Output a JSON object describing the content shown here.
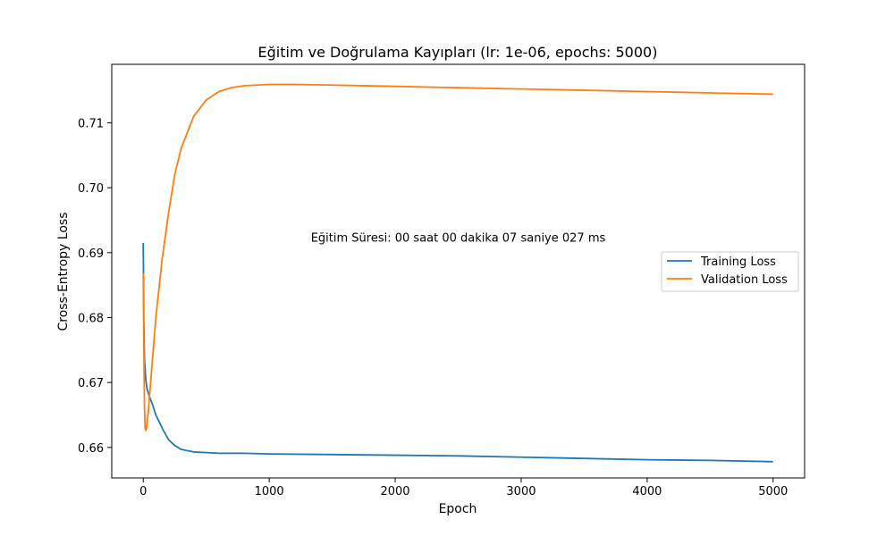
{
  "chart_data": {
    "type": "line",
    "title": "Eğitim ve Doğrulama Kayıpları (lr: 1e-06, epochs: 5000)",
    "xlabel": "Epoch",
    "ylabel": "Cross-Entropy Loss",
    "xlim": [
      -250,
      5250
    ],
    "ylim": [
      0.6553,
      0.719
    ],
    "xticks": [
      0,
      1000,
      2000,
      3000,
      4000,
      5000
    ],
    "yticks": [
      0.66,
      0.67,
      0.68,
      0.69,
      0.7,
      0.71
    ],
    "ytick_labels": [
      "0.66",
      "0.67",
      "0.68",
      "0.69",
      "0.70",
      "0.71"
    ],
    "grid": false,
    "legend_position": "center-right",
    "annotation": {
      "text": "Eğitim Süresi: 00 saat 00 dakika 07 saniye 027 ms",
      "x": 2500,
      "y": 0.6917
    },
    "series": [
      {
        "name": "Training Loss",
        "color": "#1f77b4",
        "x": [
          0,
          5,
          10,
          20,
          30,
          50,
          75,
          100,
          150,
          200,
          250,
          300,
          400,
          500,
          600,
          800,
          1000,
          1500,
          2000,
          2500,
          3000,
          3500,
          4000,
          4500,
          5000
        ],
        "y": [
          0.6915,
          0.679,
          0.6735,
          0.6705,
          0.669,
          0.6678,
          0.6665,
          0.665,
          0.663,
          0.6612,
          0.6603,
          0.6597,
          0.6593,
          0.6592,
          0.6591,
          0.6591,
          0.659,
          0.6589,
          0.6588,
          0.6587,
          0.6585,
          0.6583,
          0.6581,
          0.658,
          0.6578
        ]
      },
      {
        "name": "Validation Loss",
        "color": "#ff7f0e",
        "x": [
          0,
          5,
          10,
          15,
          20,
          25,
          30,
          40,
          50,
          75,
          100,
          150,
          200,
          250,
          300,
          400,
          500,
          600,
          700,
          800,
          1000,
          1200,
          1500,
          2000,
          2500,
          3000,
          3500,
          4000,
          4500,
          5000
        ],
        "y": [
          0.6868,
          0.675,
          0.666,
          0.663,
          0.6626,
          0.6628,
          0.6635,
          0.6655,
          0.668,
          0.674,
          0.68,
          0.689,
          0.696,
          0.702,
          0.706,
          0.711,
          0.7135,
          0.7148,
          0.7154,
          0.7157,
          0.7159,
          0.7159,
          0.7158,
          0.7156,
          0.7154,
          0.7152,
          0.715,
          0.7148,
          0.7146,
          0.7144
        ]
      }
    ]
  }
}
